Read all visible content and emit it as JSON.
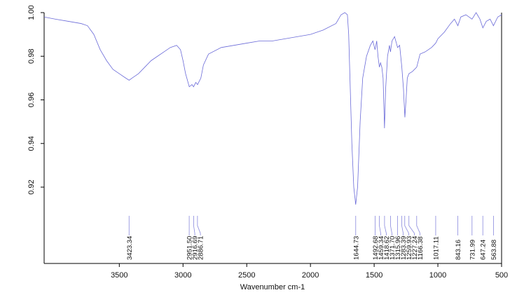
{
  "chart_data": {
    "type": "line",
    "x_label": "Wavenumber cm-1",
    "x": [
      4090,
      4000,
      3900,
      3800,
      3750,
      3700,
      3650,
      3600,
      3550,
      3500,
      3450,
      3423,
      3400,
      3350,
      3300,
      3250,
      3200,
      3150,
      3100,
      3050,
      3020,
      3000,
      2980,
      2951,
      2930,
      2917,
      2900,
      2886,
      2860,
      2840,
      2800,
      2700,
      2600,
      2500,
      2400,
      2300,
      2200,
      2100,
      2000,
      1900,
      1800,
      1760,
      1730,
      1710,
      1700,
      1690,
      1675,
      1660,
      1645,
      1630,
      1610,
      1590,
      1560,
      1530,
      1510,
      1493,
      1480,
      1470,
      1459,
      1450,
      1440,
      1430,
      1419,
      1410,
      1395,
      1380,
      1372,
      1360,
      1340,
      1316,
      1300,
      1283,
      1270,
      1259,
      1250,
      1240,
      1227,
      1200,
      1166,
      1140,
      1100,
      1050,
      1017,
      1000,
      950,
      900,
      870,
      843,
      820,
      780,
      732,
      700,
      670,
      647,
      620,
      590,
      564,
      530,
      500
    ],
    "series": [
      {
        "color": "#6a6ad8",
        "values": [
          0.998,
          0.997,
          0.996,
          0.995,
          0.994,
          0.99,
          0.983,
          0.978,
          0.974,
          0.972,
          0.97,
          0.969,
          0.97,
          0.972,
          0.975,
          0.978,
          0.98,
          0.982,
          0.984,
          0.985,
          0.983,
          0.978,
          0.972,
          0.966,
          0.967,
          0.966,
          0.968,
          0.967,
          0.97,
          0.976,
          0.981,
          0.984,
          0.985,
          0.986,
          0.987,
          0.987,
          0.988,
          0.989,
          0.99,
          0.992,
          0.995,
          0.999,
          1.0,
          0.999,
          0.99,
          0.97,
          0.94,
          0.92,
          0.912,
          0.92,
          0.95,
          0.97,
          0.98,
          0.985,
          0.987,
          0.983,
          0.987,
          0.98,
          0.975,
          0.977,
          0.975,
          0.97,
          0.947,
          0.965,
          0.98,
          0.985,
          0.982,
          0.987,
          0.989,
          0.984,
          0.985,
          0.975,
          0.965,
          0.952,
          0.96,
          0.97,
          0.972,
          0.973,
          0.975,
          0.981,
          0.982,
          0.984,
          0.986,
          0.988,
          0.991,
          0.995,
          0.997,
          0.994,
          0.998,
          0.999,
          0.997,
          1.0,
          0.997,
          0.993,
          0.996,
          0.997,
          0.994,
          0.998,
          0.999
        ]
      }
    ],
    "xlim": [
      4090,
      500
    ],
    "xticks": [
      3500,
      3000,
      2500,
      2000,
      1500,
      1000,
      500
    ],
    "ylim": [
      0.885,
      1.0
    ],
    "yticks": [
      {
        "value": 0.92,
        "label": "0.92"
      },
      {
        "value": 0.94,
        "label": "0.94"
      },
      {
        "value": 0.96,
        "label": "0.96"
      },
      {
        "value": 0.98,
        "label": "0.98"
      },
      {
        "value": 1.0,
        "label": "1.00"
      }
    ],
    "peaks": [
      3423.34,
      {
        "value": 2951.5,
        "label": "2951.50"
      },
      2916.69,
      2886.71,
      1644.73,
      1492.68,
      1459.34,
      1418.62,
      {
        "value": 1371.7,
        "label": "1371.70"
      },
      1315.96,
      1283.39,
      1259.93,
      1227.24,
      1166.38,
      1017.11,
      843.16,
      731.99,
      647.24,
      563.88
    ]
  }
}
